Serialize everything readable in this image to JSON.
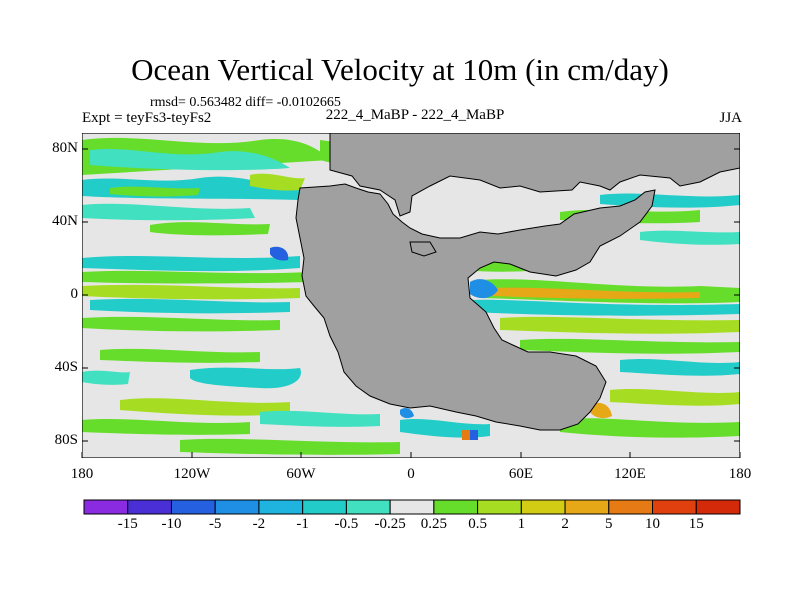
{
  "title": "Ocean Vertical Velocity at 10m (in cm/day)",
  "stats": "rmsd= 0.563482 diff= -0.0102665",
  "experiment": "Expt = teyFs3-teyFs2",
  "run_label": "222_4_MaBP - 222_4_MaBP",
  "season": "JJA",
  "lat_ticks": [
    "80N",
    "40N",
    "0",
    "40S",
    "80S"
  ],
  "lon_ticks": [
    "180",
    "120W",
    "60W",
    "0",
    "60E",
    "120E",
    "180"
  ],
  "colorbar": {
    "labels": [
      "-15",
      "-10",
      "-5",
      "-2",
      "-1",
      "-0.5",
      "-0.25",
      "0.25",
      "0.5",
      "1",
      "2",
      "5",
      "10",
      "15"
    ],
    "colors": [
      "#8a2be2",
      "#4b2fd6",
      "#2460e0",
      "#1f8fe6",
      "#1fb4e0",
      "#22ccc8",
      "#40e0c0",
      "#e6e6e6",
      "#66dd2a",
      "#a6dd22",
      "#d2cc14",
      "#e6a817",
      "#e67a14",
      "#e0400e",
      "#d42a0a"
    ]
  },
  "chart_data": {
    "type": "heatmap",
    "title": "Ocean Vertical Velocity at 10m (in cm/day)",
    "units": "cm/day",
    "x_axis": {
      "range": [
        -180,
        180
      ],
      "ticks": [
        -180,
        -120,
        -60,
        0,
        60,
        120,
        180
      ]
    },
    "y_axis": {
      "range": [
        -90,
        90
      ],
      "ticks": [
        80,
        40,
        0,
        -40,
        -80
      ]
    },
    "contour_levels": [
      -15,
      -10,
      -5,
      -2,
      -1,
      -0.5,
      -0.25,
      0.25,
      0.5,
      1,
      2,
      5,
      10,
      15
    ],
    "rmsd": 0.563482,
    "diff": -0.0102665
  }
}
